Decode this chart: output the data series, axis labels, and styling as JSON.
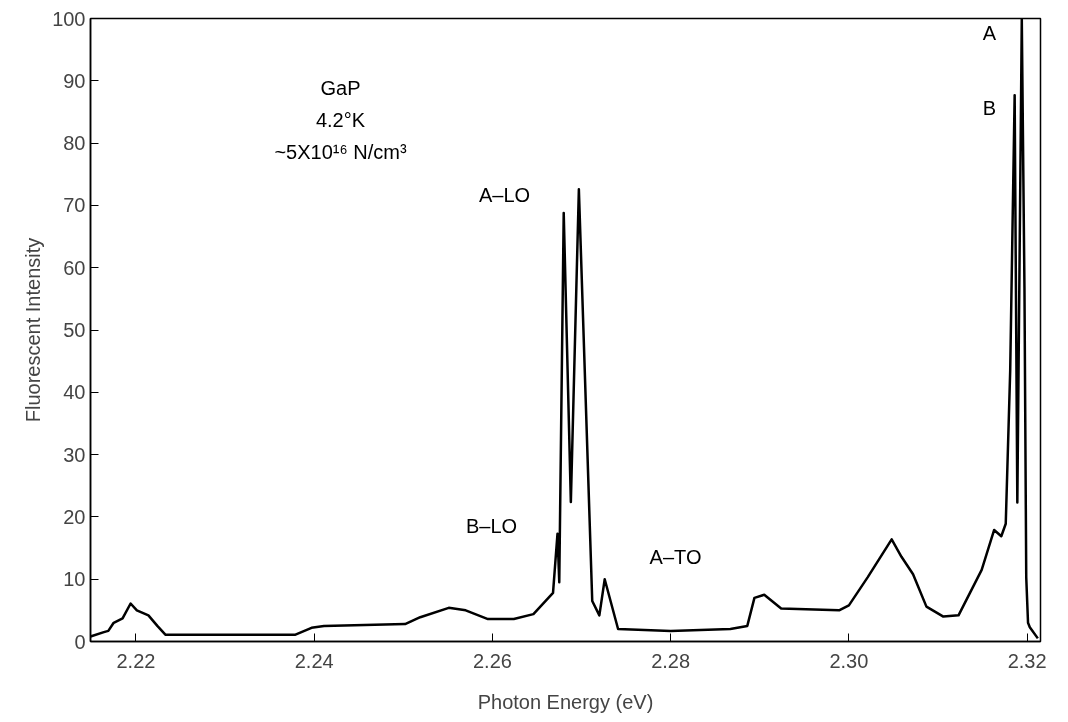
{
  "chart_data": {
    "type": "line",
    "xlabel": "Photon Energy (eV)",
    "ylabel": "Fluorescent Intensity",
    "xlim": [
      2.2149,
      2.3215
    ],
    "ylim": [
      0,
      100
    ],
    "xticks": [
      2.22,
      2.24,
      2.26,
      2.28,
      {
        "value": 2.3,
        "label": "2.30"
      },
      2.32
    ],
    "yticks": [
      0,
      10,
      20,
      30,
      40,
      50,
      60,
      70,
      80,
      90,
      100
    ],
    "grid": false,
    "marker": "none",
    "line_style": "solid",
    "series": [
      {
        "color": "#000000",
        "x": [
          2.2149,
          2.2164,
          2.2169,
          2.2175,
          2.2185,
          2.2194,
          2.2201,
          2.2214,
          2.2224,
          2.2233,
          2.2379,
          2.2397,
          2.2411,
          2.2502,
          2.2519,
          2.2551,
          2.257,
          2.2595,
          2.2624,
          2.2646,
          2.2668,
          2.2673,
          2.2675,
          2.268,
          2.2688,
          2.2697,
          2.2712,
          2.272,
          2.2726,
          2.2741,
          2.28,
          2.2867,
          2.2886,
          2.2894,
          2.2905,
          2.2924,
          2.2989,
          2.3,
          2.3021,
          2.3048,
          2.3059,
          2.3072,
          2.3087,
          2.3106,
          2.3123,
          2.3149,
          2.3163,
          2.3171,
          2.3176,
          2.3181,
          2.3186,
          2.3189,
          2.3194,
          2.3197,
          2.3199,
          2.3201,
          2.3203,
          2.3212
        ],
        "values": [
          0.8,
          1.5,
          1.7,
          3.0,
          3.7,
          6.1,
          5.0,
          4.2,
          2.5,
          1.1,
          1.1,
          2.2,
          2.5,
          2.8,
          3.9,
          5.4,
          5.0,
          3.6,
          3.6,
          4.4,
          7.8,
          17.3,
          9.5,
          68.8,
          22.4,
          72.6,
          6.5,
          4.2,
          10,
          2.0,
          1.7,
          2.0,
          2.5,
          7.0,
          7.5,
          5.3,
          5.0,
          5.8,
          10.3,
          16.4,
          13.6,
          10.8,
          5.6,
          4.0,
          4.2,
          11.5,
          17.9,
          16.9,
          18.9,
          43.5,
          87.7,
          22.3,
          100,
          56.8,
          10.3,
          3.0,
          2.3,
          0.5
        ]
      }
    ],
    "annotations": [
      "GaP",
      "4.2°K",
      "~5X10¹⁶ N/cm³",
      "A",
      "B",
      "A–LO",
      "B–LO",
      "A–TO"
    ]
  }
}
